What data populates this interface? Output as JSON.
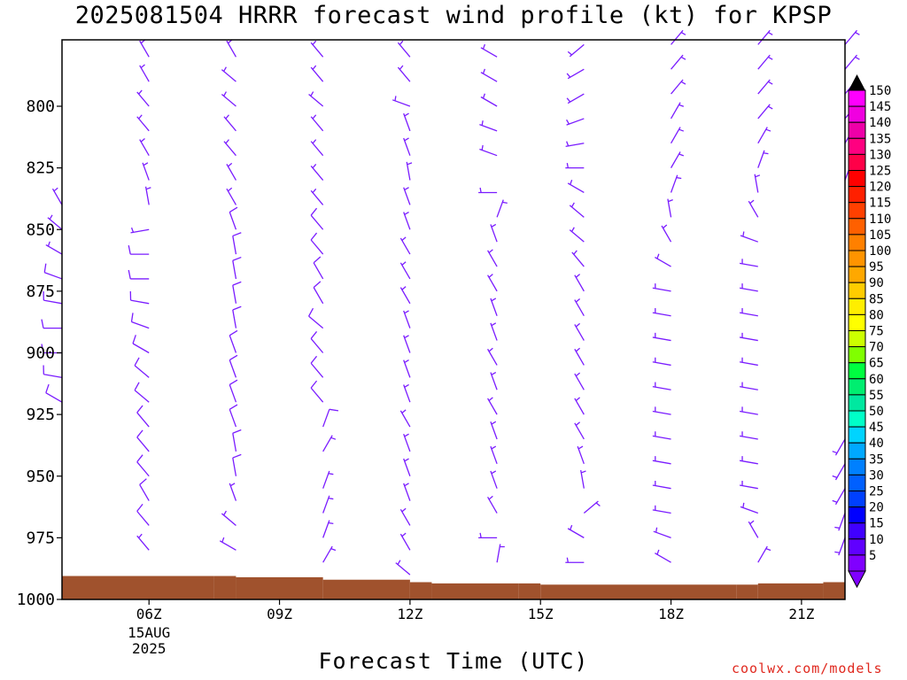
{
  "title": "2025081504 HRRR forecast wind profile (kt) for KPSP",
  "credit": "coolwx.com/models",
  "chart_data": {
    "type": "wind-barb-profile",
    "xlabel": "Forecast Time (UTC)",
    "ylabel": "",
    "y_axis_reversed": true,
    "ylim": [
      1000,
      775
    ],
    "y_ticks": [
      800,
      825,
      850,
      875,
      900,
      925,
      950,
      975,
      1000
    ],
    "x_ticks": [
      {
        "hour": 6,
        "label": "06Z",
        "sub1": "15AUG",
        "sub2": "2025"
      },
      {
        "hour": 9,
        "label": "09Z"
      },
      {
        "hour": 12,
        "label": "12Z"
      },
      {
        "hour": 15,
        "label": "15Z"
      },
      {
        "hour": 18,
        "label": "18Z"
      },
      {
        "hour": 21,
        "label": "21Z"
      }
    ],
    "xlim_hours": [
      4,
      22
    ],
    "barb_color": "#7a1cff",
    "terrain_color": "#a0522d",
    "surface_pressure": [
      {
        "hour": 4,
        "p": 990.5
      },
      {
        "hour": 7.5,
        "p": 990.5
      },
      {
        "hour": 8,
        "p": 991
      },
      {
        "hour": 10,
        "p": 992
      },
      {
        "hour": 12,
        "p": 993
      },
      {
        "hour": 12.5,
        "p": 993.5
      },
      {
        "hour": 14.5,
        "p": 993.5
      },
      {
        "hour": 15,
        "p": 994
      },
      {
        "hour": 19.5,
        "p": 994
      },
      {
        "hour": 20,
        "p": 993.5
      },
      {
        "hour": 21.5,
        "p": 993
      },
      {
        "hour": 22,
        "p": 992
      }
    ],
    "profiles": [
      {
        "hour": 4,
        "winds": [
          [
            920,
            300,
            10
          ],
          [
            910,
            280,
            10
          ],
          [
            900,
            270,
            10
          ],
          [
            890,
            270,
            10
          ],
          [
            880,
            280,
            10
          ],
          [
            870,
            290,
            10
          ],
          [
            860,
            300,
            5
          ],
          [
            850,
            310,
            5
          ],
          [
            840,
            330,
            5
          ]
        ]
      },
      {
        "hour": 6,
        "winds": [
          [
            980,
            320,
            5
          ],
          [
            970,
            320,
            10
          ],
          [
            960,
            330,
            10
          ],
          [
            950,
            320,
            10
          ],
          [
            940,
            320,
            10
          ],
          [
            930,
            320,
            10
          ],
          [
            920,
            310,
            10
          ],
          [
            910,
            310,
            10
          ],
          [
            900,
            300,
            10
          ],
          [
            890,
            290,
            10
          ],
          [
            880,
            280,
            10
          ],
          [
            870,
            270,
            10
          ],
          [
            860,
            270,
            10
          ],
          [
            850,
            260,
            5
          ],
          [
            840,
            350,
            5
          ],
          [
            830,
            340,
            5
          ],
          [
            820,
            330,
            5
          ],
          [
            810,
            320,
            5
          ],
          [
            800,
            320,
            5
          ],
          [
            790,
            330,
            5
          ],
          [
            780,
            330,
            5
          ],
          [
            770,
            320,
            5
          ]
        ]
      },
      {
        "hour": 8,
        "winds": [
          [
            980,
            300,
            5
          ],
          [
            970,
            310,
            5
          ],
          [
            960,
            340,
            5
          ],
          [
            950,
            350,
            10
          ],
          [
            940,
            350,
            10
          ],
          [
            930,
            340,
            10
          ],
          [
            920,
            340,
            10
          ],
          [
            910,
            340,
            10
          ],
          [
            900,
            340,
            10
          ],
          [
            890,
            350,
            10
          ],
          [
            880,
            350,
            10
          ],
          [
            870,
            350,
            10
          ],
          [
            860,
            350,
            10
          ],
          [
            850,
            340,
            10
          ],
          [
            840,
            330,
            5
          ],
          [
            830,
            330,
            5
          ],
          [
            820,
            320,
            5
          ],
          [
            810,
            320,
            5
          ],
          [
            800,
            310,
            5
          ],
          [
            790,
            310,
            5
          ],
          [
            780,
            330,
            5
          ]
        ]
      },
      {
        "hour": 10,
        "winds": [
          [
            985,
            30,
            5
          ],
          [
            975,
            20,
            5
          ],
          [
            965,
            20,
            5
          ],
          [
            955,
            20,
            5
          ],
          [
            940,
            30,
            5
          ],
          [
            930,
            20,
            10
          ],
          [
            920,
            320,
            10
          ],
          [
            910,
            320,
            10
          ],
          [
            900,
            320,
            10
          ],
          [
            890,
            310,
            10
          ],
          [
            880,
            330,
            10
          ],
          [
            870,
            330,
            10
          ],
          [
            860,
            320,
            10
          ],
          [
            850,
            320,
            10
          ],
          [
            840,
            320,
            5
          ],
          [
            830,
            320,
            5
          ],
          [
            820,
            320,
            5
          ],
          [
            810,
            320,
            5
          ],
          [
            800,
            310,
            5
          ],
          [
            790,
            320,
            5
          ],
          [
            780,
            320,
            5
          ]
        ]
      },
      {
        "hour": 12,
        "winds": [
          [
            990,
            310,
            5
          ],
          [
            980,
            330,
            5
          ],
          [
            970,
            330,
            5
          ],
          [
            960,
            340,
            5
          ],
          [
            950,
            340,
            5
          ],
          [
            940,
            340,
            5
          ],
          [
            930,
            330,
            5
          ],
          [
            920,
            340,
            5
          ],
          [
            910,
            340,
            5
          ],
          [
            900,
            340,
            5
          ],
          [
            890,
            340,
            5
          ],
          [
            880,
            330,
            5
          ],
          [
            870,
            330,
            5
          ],
          [
            860,
            330,
            5
          ],
          [
            850,
            340,
            5
          ],
          [
            840,
            340,
            5
          ],
          [
            830,
            350,
            5
          ],
          [
            820,
            340,
            5
          ],
          [
            810,
            340,
            5
          ],
          [
            800,
            290,
            5
          ],
          [
            790,
            320,
            5
          ],
          [
            780,
            320,
            5
          ]
        ]
      },
      {
        "hour": 14,
        "winds": [
          [
            985,
            10,
            5
          ],
          [
            975,
            270,
            5
          ],
          [
            965,
            330,
            5
          ],
          [
            955,
            340,
            5
          ],
          [
            945,
            340,
            5
          ],
          [
            935,
            340,
            5
          ],
          [
            925,
            330,
            5
          ],
          [
            915,
            340,
            5
          ],
          [
            905,
            330,
            5
          ],
          [
            895,
            340,
            5
          ],
          [
            885,
            340,
            5
          ],
          [
            875,
            330,
            5
          ],
          [
            865,
            330,
            5
          ],
          [
            855,
            340,
            5
          ],
          [
            845,
            20,
            5
          ],
          [
            835,
            270,
            5
          ],
          [
            820,
            290,
            5
          ],
          [
            810,
            290,
            5
          ],
          [
            800,
            300,
            5
          ],
          [
            790,
            300,
            5
          ],
          [
            780,
            300,
            5
          ]
        ]
      },
      {
        "hour": 16,
        "winds": [
          [
            985,
            270,
            5
          ],
          [
            975,
            300,
            5
          ],
          [
            965,
            50,
            5
          ],
          [
            955,
            350,
            5
          ],
          [
            945,
            340,
            5
          ],
          [
            935,
            330,
            5
          ],
          [
            925,
            330,
            5
          ],
          [
            915,
            330,
            5
          ],
          [
            905,
            330,
            5
          ],
          [
            895,
            330,
            5
          ],
          [
            885,
            330,
            5
          ],
          [
            875,
            330,
            5
          ],
          [
            865,
            320,
            5
          ],
          [
            855,
            310,
            5
          ],
          [
            845,
            310,
            5
          ],
          [
            835,
            300,
            5
          ],
          [
            825,
            270,
            5
          ],
          [
            815,
            260,
            5
          ],
          [
            805,
            250,
            5
          ],
          [
            795,
            240,
            5
          ],
          [
            785,
            240,
            5
          ],
          [
            775,
            230,
            5
          ]
        ]
      },
      {
        "hour": 18,
        "winds": [
          [
            985,
            300,
            5
          ],
          [
            975,
            290,
            5
          ],
          [
            965,
            280,
            5
          ],
          [
            955,
            280,
            5
          ],
          [
            945,
            280,
            5
          ],
          [
            935,
            280,
            5
          ],
          [
            925,
            280,
            5
          ],
          [
            915,
            280,
            5
          ],
          [
            905,
            280,
            5
          ],
          [
            895,
            280,
            5
          ],
          [
            885,
            280,
            5
          ],
          [
            875,
            280,
            5
          ],
          [
            865,
            300,
            5
          ],
          [
            855,
            330,
            5
          ],
          [
            845,
            350,
            5
          ],
          [
            835,
            20,
            5
          ],
          [
            825,
            30,
            5
          ],
          [
            815,
            30,
            5
          ],
          [
            805,
            30,
            5
          ],
          [
            795,
            40,
            5
          ],
          [
            785,
            40,
            5
          ],
          [
            775,
            40,
            5
          ]
        ]
      },
      {
        "hour": 20,
        "winds": [
          [
            985,
            30,
            5
          ],
          [
            975,
            330,
            5
          ],
          [
            965,
            290,
            5
          ],
          [
            955,
            280,
            5
          ],
          [
            945,
            280,
            5
          ],
          [
            935,
            280,
            5
          ],
          [
            925,
            280,
            5
          ],
          [
            915,
            280,
            5
          ],
          [
            905,
            280,
            5
          ],
          [
            895,
            280,
            5
          ],
          [
            885,
            280,
            5
          ],
          [
            875,
            280,
            5
          ],
          [
            865,
            280,
            5
          ],
          [
            855,
            290,
            5
          ],
          [
            845,
            330,
            5
          ],
          [
            835,
            350,
            5
          ],
          [
            825,
            20,
            5
          ],
          [
            815,
            30,
            5
          ],
          [
            805,
            40,
            5
          ],
          [
            795,
            40,
            5
          ],
          [
            785,
            40,
            5
          ],
          [
            775,
            40,
            5
          ]
        ]
      },
      {
        "hour": 22,
        "winds": [
          [
            975,
            200,
            5
          ],
          [
            965,
            200,
            5
          ],
          [
            955,
            210,
            5
          ],
          [
            945,
            210,
            5
          ],
          [
            935,
            210,
            5
          ],
          [
            830,
            20,
            5
          ],
          [
            815,
            30,
            5
          ],
          [
            805,
            40,
            5
          ],
          [
            795,
            40,
            5
          ],
          [
            785,
            40,
            5
          ],
          [
            775,
            40,
            5
          ]
        ]
      }
    ]
  },
  "colorbar": {
    "labels": [
      "150",
      "145",
      "140",
      "135",
      "130",
      "125",
      "120",
      "115",
      "110",
      "105",
      "100",
      "95",
      "90",
      "85",
      "80",
      "75",
      "70",
      "65",
      "60",
      "55",
      "50",
      "45",
      "40",
      "35",
      "30",
      "25",
      "20",
      "15",
      "10",
      "5"
    ],
    "colors": [
      "#ff00ff",
      "#f000e0",
      "#ee00a8",
      "#ff0080",
      "#ff0048",
      "#ff0000",
      "#ff2000",
      "#ff4000",
      "#ff6000",
      "#ff8000",
      "#ff9400",
      "#ffa800",
      "#ffcc00",
      "#ffee00",
      "#ffff00",
      "#ccff00",
      "#80ff00",
      "#00ff40",
      "#00ee70",
      "#00e8a0",
      "#00ffc8",
      "#00d4ff",
      "#00a8ff",
      "#0080ff",
      "#0060ff",
      "#0040ff",
      "#0000ff",
      "#4000ff",
      "#6000ff",
      "#8000ff"
    ],
    "top_arrow_color": "#000000",
    "bottom_arrow_color": "#8000ff"
  }
}
